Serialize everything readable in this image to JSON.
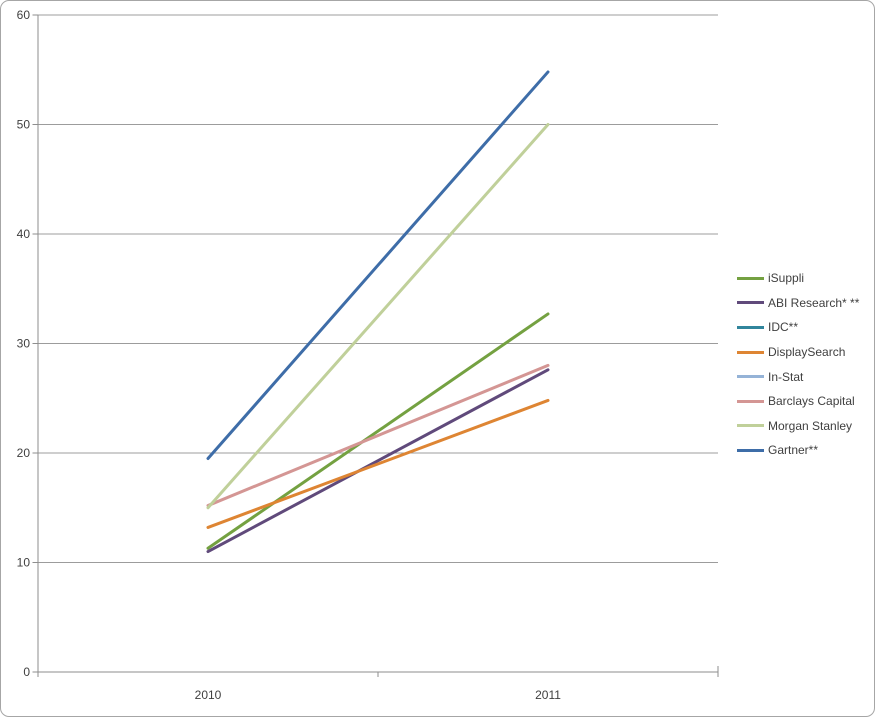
{
  "chart_data": {
    "type": "line",
    "title": "",
    "categories": [
      "2010",
      "2011"
    ],
    "series": [
      {
        "name": "iSuppli",
        "color": "#74A141",
        "values": [
          11.3,
          32.7
        ]
      },
      {
        "name": "ABI Research* **",
        "color": "#604A7B",
        "values": [
          11.0,
          27.6
        ]
      },
      {
        "name": "IDC**",
        "color": "#31859C",
        "values": null
      },
      {
        "name": "DisplaySearch",
        "color": "#DE8533",
        "values": [
          13.2,
          24.8
        ]
      },
      {
        "name": "In-Stat",
        "color": "#95B3D7",
        "values": null
      },
      {
        "name": "Barclays Capital",
        "color": "#D49694",
        "values": [
          15.2,
          28.0
        ]
      },
      {
        "name": "Morgan Stanley",
        "color": "#C0D09A",
        "values": [
          15.0,
          50.0
        ]
      },
      {
        "name": "Gartner**",
        "color": "#3E6DA8",
        "values": [
          19.5,
          54.8
        ]
      }
    ],
    "ylim": [
      0,
      60
    ],
    "ytick_step": 10,
    "ytick_labels": [
      "0",
      "10",
      "20",
      "30",
      "40",
      "50",
      "60"
    ],
    "xlabel": "",
    "ylabel": "",
    "grid": true,
    "legend_position": "right"
  },
  "colors": {
    "gridline": "#9c9c9c",
    "axis": "#8e8e8e",
    "tick_text": "#3f3f3f",
    "frame_border": "#a6a6a6",
    "background": "#ffffff"
  }
}
